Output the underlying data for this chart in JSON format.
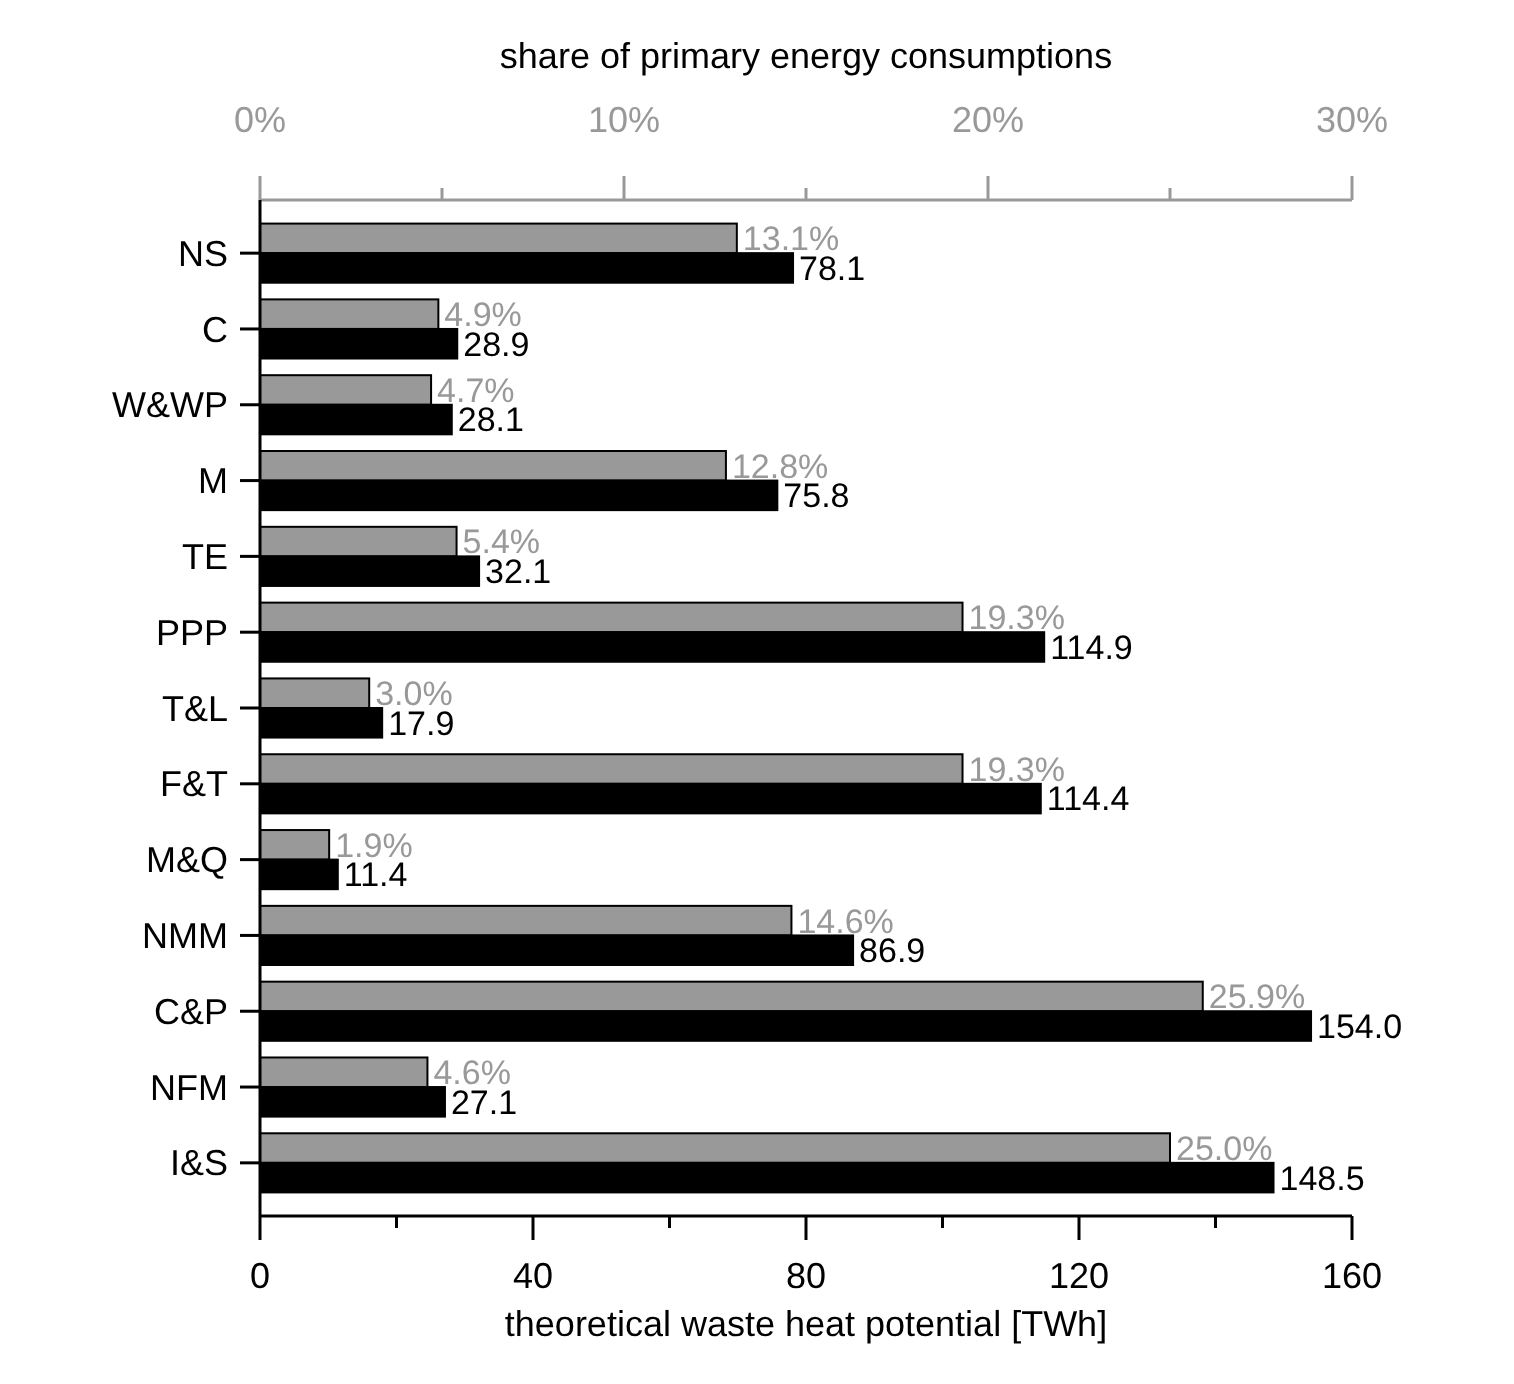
{
  "chart_data": {
    "type": "bar",
    "orientation": "horizontal",
    "xlabel": "theoretical waste heat potential [TWh]",
    "x2label": "share of primary energy consumptions",
    "categories": [
      "NS",
      "C",
      "W&WP",
      "M",
      "TE",
      "PPP",
      "T&L",
      "F&T",
      "M&Q",
      "NMM",
      "C&P",
      "NFM",
      "I&S"
    ],
    "series": [
      {
        "color": "#999999",
        "axis": "x2",
        "values": [
          13.1,
          4.9,
          4.7,
          12.8,
          5.4,
          19.3,
          3.0,
          19.3,
          1.9,
          14.6,
          25.9,
          4.6,
          25.0
        ],
        "value_labels": [
          "13.1%",
          "4.9%",
          "4.7%",
          "12.8%",
          "5.4%",
          "19.3%",
          "3.0%",
          "19.3%",
          "1.9%",
          "14.6%",
          "25.9%",
          "4.6%",
          "25.0%"
        ]
      },
      {
        "color": "#000000",
        "values": [
          78.1,
          28.9,
          28.1,
          75.8,
          32.1,
          114.9,
          17.9,
          114.4,
          11.4,
          86.9,
          154.0,
          27.1,
          148.5
        ],
        "value_labels": [
          "78.1",
          "28.9",
          "28.1",
          "75.8",
          "32.1",
          "114.9",
          "17.9",
          "114.4",
          "11.4",
          "86.9",
          "154.0",
          "27.1",
          "148.5"
        ]
      }
    ],
    "xlim": [
      0,
      160
    ],
    "xticks": [
      0,
      {
        "value": 20,
        "label": null
      },
      40,
      {
        "value": 60,
        "label": null
      },
      80,
      {
        "value": 100,
        "label": null
      },
      120,
      {
        "value": 140,
        "label": null
      },
      160
    ],
    "x2lim": [
      0,
      30
    ],
    "x2ticks": [
      {
        "value": 0,
        "label": "0%"
      },
      {
        "value": 5,
        "label": null
      },
      {
        "value": 10,
        "label": "10%"
      },
      {
        "value": 15,
        "label": null
      },
      {
        "value": 20,
        "label": "20%"
      },
      {
        "value": 25,
        "label": null
      },
      {
        "value": 30,
        "label": "30%"
      }
    ],
    "grid": false
  }
}
